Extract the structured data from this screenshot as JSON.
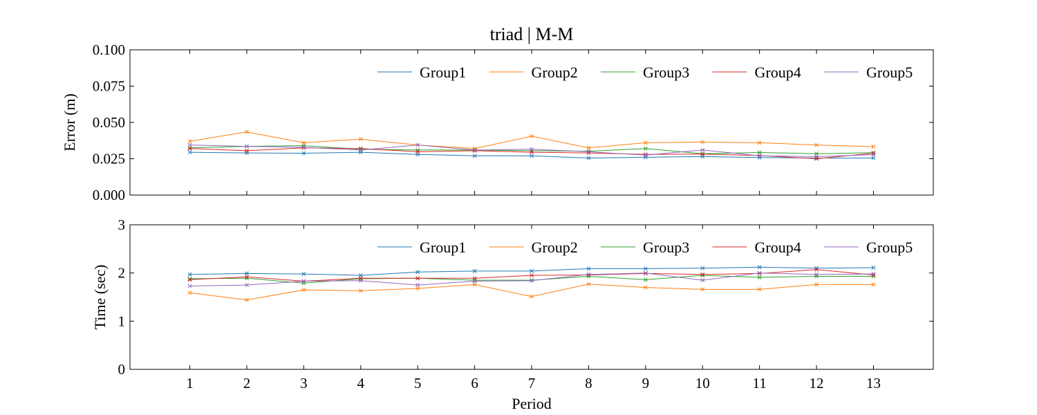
{
  "chart_data": {
    "title": "triad | M-M",
    "type": "line",
    "xlabel": "Period",
    "x": [
      1,
      2,
      3,
      4,
      5,
      6,
      7,
      8,
      9,
      10,
      11,
      12,
      13
    ],
    "xlim": [
      -0.05,
      14.05
    ],
    "colors": {
      "Group1": "#1f77b4",
      "Group2": "#ff7f0e",
      "Group3": "#2ca02c",
      "Group4": "#d62728",
      "Group5": "#9467bd"
    },
    "marker": "x",
    "panels": [
      {
        "id": "error",
        "ylabel": "Error (m)",
        "ylim": [
          0,
          0.1
        ],
        "yticks": [
          0,
          0.025,
          0.05,
          0.075,
          0.1
        ],
        "ytick_labels": [
          "0.000",
          "0.025",
          "0.050",
          "0.075",
          "0.100"
        ],
        "legend_position": "top-right",
        "series": [
          {
            "name": "Group1",
            "values": [
              0.0295,
              0.029,
              0.0288,
              0.0295,
              0.028,
              0.027,
              0.027,
              0.0255,
              0.026,
              0.0265,
              0.0258,
              0.0255,
              0.0255
            ]
          },
          {
            "name": "Group2",
            "values": [
              0.037,
              0.0435,
              0.036,
              0.0385,
              0.0345,
              0.032,
              0.0405,
              0.0325,
              0.036,
              0.0365,
              0.036,
              0.0345,
              0.0333
            ]
          },
          {
            "name": "Group3",
            "values": [
              0.0325,
              0.0335,
              0.034,
              0.0315,
              0.031,
              0.031,
              0.0305,
              0.0302,
              0.032,
              0.0285,
              0.0293,
              0.0285,
              0.0292
            ]
          },
          {
            "name": "Group4",
            "values": [
              0.032,
              0.0305,
              0.0325,
              0.032,
              0.0298,
              0.0305,
              0.0295,
              0.029,
              0.028,
              0.0282,
              0.0272,
              0.025,
              0.0288
            ]
          },
          {
            "name": "Group5",
            "values": [
              0.0345,
              0.0335,
              0.0328,
              0.031,
              0.0345,
              0.031,
              0.0315,
              0.0298,
              0.0275,
              0.031,
              0.027,
              0.0265,
              0.0278
            ]
          }
        ]
      },
      {
        "id": "time",
        "ylabel": "Time (sec)",
        "ylim": [
          0,
          3
        ],
        "yticks": [
          0,
          1,
          2,
          3
        ],
        "ytick_labels": [
          "0",
          "1",
          "2",
          "3"
        ],
        "legend_position": "top-right",
        "series": [
          {
            "name": "Group1",
            "values": [
              1.97,
              1.99,
              1.98,
              1.95,
              2.02,
              2.04,
              2.04,
              2.09,
              2.09,
              2.1,
              2.12,
              2.1,
              2.11
            ]
          },
          {
            "name": "Group2",
            "values": [
              1.59,
              1.44,
              1.65,
              1.63,
              1.68,
              1.76,
              1.51,
              1.77,
              1.7,
              1.66,
              1.66,
              1.76,
              1.76
            ]
          },
          {
            "name": "Group3",
            "values": [
              1.88,
              1.89,
              1.79,
              1.88,
              1.89,
              1.85,
              1.85,
              1.93,
              1.86,
              1.95,
              1.91,
              1.93,
              1.93
            ]
          },
          {
            "name": "Group4",
            "values": [
              1.86,
              1.92,
              1.83,
              1.89,
              1.89,
              1.89,
              1.95,
              1.96,
              1.99,
              1.97,
              1.99,
              2.07,
              1.96
            ]
          },
          {
            "name": "Group5",
            "values": [
              1.73,
              1.75,
              1.83,
              1.84,
              1.75,
              1.83,
              1.84,
              1.97,
              2.0,
              1.85,
              2.0,
              1.97,
              1.98
            ]
          }
        ]
      }
    ]
  }
}
